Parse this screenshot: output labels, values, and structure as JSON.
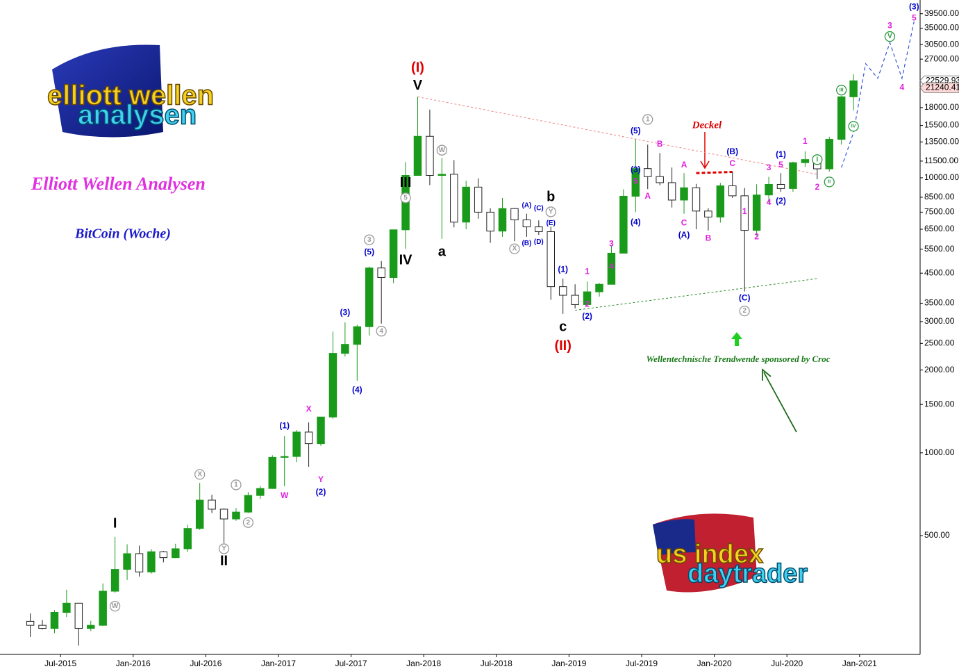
{
  "chart_data": {
    "type": "candlestick",
    "title": "Elliott Wellen Analysen",
    "subtitle": "BitCoin (Woche)",
    "log_scale": true,
    "up_color": "#1a9a1a",
    "down_color": "#222222",
    "x": [
      "2015-04",
      "2015-05",
      "2015-06",
      "2015-07",
      "2015-08",
      "2015-09",
      "2015-10",
      "2015-11",
      "2015-12",
      "2016-01",
      "2016-02",
      "2016-03",
      "2016-04",
      "2016-05",
      "2016-06",
      "2016-07",
      "2016-08",
      "2016-09",
      "2016-10",
      "2016-11",
      "2016-12",
      "2017-01",
      "2017-02",
      "2017-03",
      "2017-04",
      "2017-05",
      "2017-06",
      "2017-07",
      "2017-08",
      "2017-09",
      "2017-10",
      "2017-11",
      "2017-12",
      "2018-01",
      "2018-02",
      "2018-03",
      "2018-04",
      "2018-05",
      "2018-06",
      "2018-07",
      "2018-08",
      "2018-09",
      "2018-10",
      "2018-11",
      "2018-12",
      "2019-01",
      "2019-02",
      "2019-03",
      "2019-04",
      "2019-05",
      "2019-06",
      "2019-07",
      "2019-08",
      "2019-09",
      "2019-10",
      "2019-11",
      "2019-12",
      "2020-01",
      "2020-02",
      "2020-03",
      "2020-04",
      "2020-05",
      "2020-06",
      "2020-07",
      "2020-08",
      "2020-09",
      "2020-10",
      "2020-11",
      "2020-12"
    ],
    "open": [
      244,
      236,
      230,
      263,
      284,
      230,
      236,
      314,
      377,
      430,
      369,
      437,
      416,
      448,
      531,
      673,
      624,
      575,
      609,
      700,
      742,
      963,
      970,
      1190,
      1080,
      1350,
      2300,
      2480,
      2875,
      4700,
      4340,
      6470,
      10200,
      14150,
      10200,
      10300,
      6900,
      9250,
      7500,
      6400,
      7730,
      7030,
      6630,
      6370,
      4020,
      3740,
      3460,
      3850,
      4100,
      5320,
      8570,
      10800,
      10100,
      9600,
      8300,
      9200,
      7570,
      7200,
      9350,
      8600,
      6440,
      8660,
      9460,
      9140,
      11350,
      11650,
      10780,
      13800,
      19700
    ],
    "high": [
      261,
      247,
      268,
      318,
      285,
      245,
      335,
      495,
      465,
      460,
      447,
      440,
      467,
      548,
      778,
      704,
      628,
      630,
      720,
      757,
      980,
      1150,
      1210,
      1290,
      1350,
      2760,
      2980,
      2920,
      4760,
      4980,
      6470,
      11400,
      19700,
      17700,
      11800,
      11600,
      9750,
      9950,
      7750,
      8450,
      7760,
      7400,
      7000,
      6640,
      4300,
      4100,
      4200,
      4150,
      5640,
      9080,
      13800,
      13200,
      12300,
      10900,
      10400,
      9500,
      7750,
      9580,
      10500,
      9190,
      9470,
      10080,
      10400,
      11450,
      12480,
      12080,
      14100,
      19860,
      23800
    ],
    "low": [
      214,
      228,
      221,
      253,
      199,
      225,
      235,
      310,
      345,
      355,
      364,
      400,
      414,
      436,
      525,
      605,
      470,
      566,
      605,
      681,
      740,
      756,
      925,
      890,
      1060,
      1330,
      2240,
      1830,
      2670,
      2950,
      4140,
      5520,
      10200,
      9400,
      6000,
      6600,
      6500,
      7100,
      5800,
      6100,
      5880,
      6100,
      6200,
      3600,
      3200,
      3350,
      3400,
      3700,
      4100,
      5320,
      7500,
      9100,
      9400,
      7800,
      7400,
      6500,
      6430,
      6870,
      8450,
      3860,
      6160,
      8120,
      8900,
      8900,
      10970,
      9880,
      10540,
      13200,
      17600
    ],
    "close": [
      236,
      230,
      263,
      284,
      230,
      236,
      314,
      377,
      430,
      369,
      437,
      416,
      448,
      531,
      673,
      624,
      575,
      609,
      700,
      742,
      963,
      970,
      1190,
      1080,
      1350,
      2300,
      2480,
      2875,
      4700,
      4340,
      6470,
      10200,
      14150,
      10200,
      10300,
      6900,
      9250,
      7500,
      6400,
      7730,
      7030,
      6630,
      6370,
      4020,
      3740,
      3460,
      3850,
      4100,
      5320,
      8570,
      10800,
      10100,
      9600,
      8300,
      9200,
      7570,
      7200,
      9350,
      8600,
      6440,
      8660,
      9460,
      9140,
      11350,
      11650,
      10780,
      13800,
      19700,
      22530
    ],
    "xlim": [
      "2015-02",
      "2021-06"
    ],
    "xticks": [
      {
        "value": "2015-07",
        "label": "Jul-2015"
      },
      {
        "value": "2016-01",
        "label": "Jan-2016"
      },
      {
        "value": "2016-07",
        "label": "Jul-2016"
      },
      {
        "value": "2017-01",
        "label": "Jan-2017"
      },
      {
        "value": "2017-07",
        "label": "Jul-2017"
      },
      {
        "value": "2018-01",
        "label": "Jan-2018"
      },
      {
        "value": "2018-07",
        "label": "Jul-2018"
      },
      {
        "value": "2019-01",
        "label": "Jan-2019"
      },
      {
        "value": "2019-07",
        "label": "Jul-2019"
      },
      {
        "value": "2020-01",
        "label": "Jan-2020"
      },
      {
        "value": "2020-07",
        "label": "Jul-2020"
      },
      {
        "value": "2021-01",
        "label": "Jan-2021"
      }
    ],
    "ylim": [
      185,
      44300
    ],
    "yticks": [
      {
        "value": 500,
        "label": "500.00"
      },
      {
        "value": 1000,
        "label": "1000.00"
      },
      {
        "value": 1500,
        "label": "1500.00"
      },
      {
        "value": 2000,
        "label": "2000.00"
      },
      {
        "value": 2500,
        "label": "2500.00"
      },
      {
        "value": 3000,
        "label": "3000.00"
      },
      {
        "value": 3500,
        "label": "3500.00"
      },
      {
        "value": 4500,
        "label": "4500.00"
      },
      {
        "value": 5500,
        "label": "5500.00"
      },
      {
        "value": 6500,
        "label": "6500.00"
      },
      {
        "value": 7500,
        "label": "7500.00"
      },
      {
        "value": 8500,
        "label": "8500.00"
      },
      {
        "value": 10000,
        "label": "10000.00"
      },
      {
        "value": 11500,
        "label": "11500.00"
      },
      {
        "value": 13500,
        "label": "13500.00"
      },
      {
        "value": 15500,
        "label": "15500.00"
      },
      {
        "value": 18000,
        "label": "18000.00"
      },
      {
        "value": 27000,
        "label": "27000.00"
      },
      {
        "value": 30500,
        "label": "30500.00"
      },
      {
        "value": 35000,
        "label": "35000.00"
      },
      {
        "value": 39500,
        "label": "39500.00"
      }
    ],
    "price_labels": [
      22529.93,
      21240.41
    ],
    "trend_lines": [
      {
        "color": "#f08080",
        "dash": "3,3",
        "x": [
          "2017-12",
          "2020-09"
        ],
        "values": [
          19700,
          10300
        ]
      },
      {
        "color": "#2a8a2a",
        "dash": "3,3",
        "x": [
          "2019-01",
          "2020-09"
        ],
        "values": [
          3300,
          4300
        ]
      },
      {
        "color": "#e00000",
        "dash": "5,3",
        "x": [
          "2019-11",
          "2020-02"
        ],
        "values": [
          10400,
          10500
        ]
      }
    ],
    "projection": {
      "color": "#3355dd",
      "x": [
        "2020-11",
        "2020-12",
        "2021-01",
        "2021-02",
        "2021-03",
        "2021-04",
        "2021-05"
      ],
      "values": [
        10900,
        14600,
        26000,
        23000,
        31000,
        23000,
        37000
      ]
    },
    "annotations": [
      {
        "text": "(I)",
        "x": "2017-12",
        "y": 25000,
        "color": "#e00000",
        "style": "big"
      },
      {
        "text": "V",
        "x": "2017-12",
        "y": 21600,
        "color": "#000",
        "style": "big"
      },
      {
        "text": "III",
        "x": "2017-11",
        "y": 9550,
        "color": "#000",
        "style": "big"
      },
      {
        "text": "IV",
        "x": "2017-11",
        "y": 5000,
        "color": "#000",
        "style": "big"
      },
      {
        "text": "a",
        "x": "2018-02",
        "y": 5360,
        "color": "#000",
        "style": "big"
      },
      {
        "text": "b",
        "x": "2018-11",
        "y": 8490,
        "color": "#000",
        "style": "big"
      },
      {
        "text": "c",
        "x": "2018-12",
        "y": 2860,
        "color": "#000",
        "style": "big"
      },
      {
        "text": "(II)",
        "x": "2018-12",
        "y": 2440,
        "color": "#e00000",
        "style": "big"
      },
      {
        "text": "I",
        "x": "2015-11",
        "y": 552,
        "color": "#000",
        "style": "big"
      },
      {
        "text": "II",
        "x": "2016-08",
        "y": 403,
        "color": "#000",
        "style": "big"
      },
      {
        "text": "W",
        "x": "2015-11",
        "y": 277,
        "color": "#999",
        "style": "circle"
      },
      {
        "text": "X",
        "x": "2016-06",
        "y": 835,
        "color": "#999",
        "style": "circle"
      },
      {
        "text": "Y",
        "x": "2016-08",
        "y": 448,
        "color": "#999",
        "style": "circle"
      },
      {
        "text": "1",
        "x": "2016-09",
        "y": 765,
        "color": "#999",
        "style": "circle"
      },
      {
        "text": "2",
        "x": "2016-10",
        "y": 558,
        "color": "#999",
        "style": "circle"
      },
      {
        "text": "3",
        "x": "2017-08",
        "y": 5950,
        "color": "#999",
        "style": "circle"
      },
      {
        "text": "4",
        "x": "2017-09",
        "y": 2770,
        "color": "#999",
        "style": "circle"
      },
      {
        "text": "5",
        "x": "2017-11",
        "y": 8450,
        "color": "#999",
        "style": "circle"
      },
      {
        "text": "W",
        "x": "2018-02",
        "y": 12600,
        "color": "#999",
        "style": "circle"
      },
      {
        "text": "X",
        "x": "2018-08",
        "y": 5520,
        "color": "#999",
        "style": "circle"
      },
      {
        "text": "Y",
        "x": "2018-11",
        "y": 7520,
        "color": "#999",
        "style": "circle"
      },
      {
        "text": "1",
        "x": "2019-07",
        "y": 16300,
        "color": "#999",
        "style": "circle"
      },
      {
        "text": "2",
        "x": "2020-03",
        "y": 3280,
        "color": "#999",
        "style": "circle"
      },
      {
        "text": "(5)",
        "x": "2017-08",
        "y": 5360,
        "color": "#0000cc",
        "style": "small"
      },
      {
        "text": "(3)",
        "x": "2017-06",
        "y": 3230,
        "color": "#0000cc",
        "style": "small"
      },
      {
        "text": "(4)",
        "x": "2017-07",
        "y": 1690,
        "color": "#0000cc",
        "style": "small"
      },
      {
        "text": "(1)",
        "x": "2017-01",
        "y": 1250,
        "color": "#0000cc",
        "style": "small"
      },
      {
        "text": "(2)",
        "x": "2017-04",
        "y": 718,
        "color": "#0000cc",
        "style": "small"
      },
      {
        "text": "X",
        "x": "2017-03",
        "y": 1440,
        "color": "#e020e0",
        "style": "small"
      },
      {
        "text": "W",
        "x": "2017-01",
        "y": 697,
        "color": "#e020e0",
        "style": "small"
      },
      {
        "text": "Y",
        "x": "2017-04",
        "y": 797,
        "color": "#e020e0",
        "style": "small"
      },
      {
        "text": "(1)",
        "x": "2018-12",
        "y": 4630,
        "color": "#0000cc",
        "style": "small"
      },
      {
        "text": "(2)",
        "x": "2019-02",
        "y": 3130,
        "color": "#0000cc",
        "style": "small"
      },
      {
        "text": "1",
        "x": "2019-02",
        "y": 4550,
        "color": "#e020e0",
        "style": "small"
      },
      {
        "text": "2",
        "x": "2019-02",
        "y": 3460,
        "color": "#e020e0",
        "style": "small"
      },
      {
        "text": "3",
        "x": "2019-04",
        "y": 5750,
        "color": "#e020e0",
        "style": "small"
      },
      {
        "text": "4",
        "x": "2019-04",
        "y": 4740,
        "color": "#e020e0",
        "style": "small"
      },
      {
        "text": "5",
        "x": "2019-06",
        "y": 9700,
        "color": "#e020e0",
        "style": "small"
      },
      {
        "text": "(3)",
        "x": "2019-06",
        "y": 10660,
        "color": "#0000cc",
        "style": "small"
      },
      {
        "text": "(4)",
        "x": "2019-06",
        "y": 6880,
        "color": "#0000cc",
        "style": "small"
      },
      {
        "text": "(5)",
        "x": "2019-06",
        "y": 14790,
        "color": "#0000cc",
        "style": "small"
      },
      {
        "text": "B",
        "x": "2019-08",
        "y": 13240,
        "color": "#e020e0",
        "style": "small"
      },
      {
        "text": "A",
        "x": "2019-07",
        "y": 8550,
        "color": "#e020e0",
        "style": "small"
      },
      {
        "text": "A",
        "x": "2019-10",
        "y": 11110,
        "color": "#e020e0",
        "style": "small"
      },
      {
        "text": "C",
        "x": "2019-10",
        "y": 6840,
        "color": "#e020e0",
        "style": "small"
      },
      {
        "text": "(A)",
        "x": "2019-10",
        "y": 6170,
        "color": "#0000cc",
        "style": "small"
      },
      {
        "text": "B",
        "x": "2019-12",
        "y": 6020,
        "color": "#e020e0",
        "style": "small"
      },
      {
        "text": "C",
        "x": "2020-02",
        "y": 11240,
        "color": "#e020e0",
        "style": "small"
      },
      {
        "text": "(B)",
        "x": "2020-02",
        "y": 12410,
        "color": "#0000cc",
        "style": "small"
      },
      {
        "text": "(C)",
        "x": "2020-03",
        "y": 3650,
        "color": "#0000cc",
        "style": "small"
      },
      {
        "text": "1",
        "x": "2020-03",
        "y": 7520,
        "color": "#e020e0",
        "style": "small"
      },
      {
        "text": "2",
        "x": "2020-04",
        "y": 6090,
        "color": "#e020e0",
        "style": "small"
      },
      {
        "text": "3",
        "x": "2020-05",
        "y": 10850,
        "color": "#e020e0",
        "style": "small"
      },
      {
        "text": "4",
        "x": "2020-05",
        "y": 8110,
        "color": "#e020e0",
        "style": "small"
      },
      {
        "text": "(1)",
        "x": "2020-06",
        "y": 12130,
        "color": "#0000cc",
        "style": "small"
      },
      {
        "text": "5",
        "x": "2020-06",
        "y": 11110,
        "color": "#e020e0",
        "style": "small"
      },
      {
        "text": "(2)",
        "x": "2020-06",
        "y": 8200,
        "color": "#0000cc",
        "style": "small"
      },
      {
        "text": "1",
        "x": "2020-08",
        "y": 13540,
        "color": "#e020e0",
        "style": "small"
      },
      {
        "text": "2",
        "x": "2020-09",
        "y": 9220,
        "color": "#e020e0",
        "style": "small"
      },
      {
        "text": "I",
        "x": "2020-09",
        "y": 11640,
        "color": "#2a9a40",
        "style": "circle"
      },
      {
        "text": "II",
        "x": "2020-10",
        "y": 9660,
        "color": "#2a9a40",
        "style": "circle"
      },
      {
        "text": "III",
        "x": "2020-11",
        "y": 20840,
        "color": "#2a9a40",
        "style": "circle"
      },
      {
        "text": "IV",
        "x": "2020-12",
        "y": 15390,
        "color": "#2a9a40",
        "style": "circle"
      },
      {
        "text": "V",
        "x": "2021-03",
        "y": 32630,
        "color": "#2a9a40",
        "style": "circle"
      },
      {
        "text": "3",
        "x": "2021-03",
        "y": 35650,
        "color": "#e020e0",
        "style": "small"
      },
      {
        "text": "4",
        "x": "2021-04",
        "y": 21220,
        "color": "#e020e0",
        "style": "small"
      },
      {
        "text": "5",
        "x": "2021-05",
        "y": 38000,
        "color": "#e020e0",
        "style": "small"
      },
      {
        "text": "(3)",
        "x": "2021-05",
        "y": 41700,
        "color": "#0000cc",
        "style": "small"
      },
      {
        "text": "(A)",
        "x": "2018-09",
        "y": 7920,
        "color": "#0000cc",
        "style": "tiny"
      },
      {
        "text": "(B)",
        "x": "2018-09",
        "y": 5780,
        "color": "#0000cc",
        "style": "tiny"
      },
      {
        "text": "(C)",
        "x": "2018-10",
        "y": 7740,
        "color": "#0000cc",
        "style": "tiny"
      },
      {
        "text": "(D)",
        "x": "2018-10",
        "y": 5850,
        "color": "#0000cc",
        "style": "tiny"
      },
      {
        "text": "(E)",
        "x": "2018-11",
        "y": 6840,
        "color": "#0000cc",
        "style": "tiny"
      }
    ],
    "deckel": "Deckel",
    "sponsor": "Wellentechnische Trendwende sponsored by Croc"
  },
  "logos": {
    "top": [
      "elliott wellen",
      "analysen"
    ],
    "bottom": [
      "us index",
      "daytrader"
    ]
  }
}
